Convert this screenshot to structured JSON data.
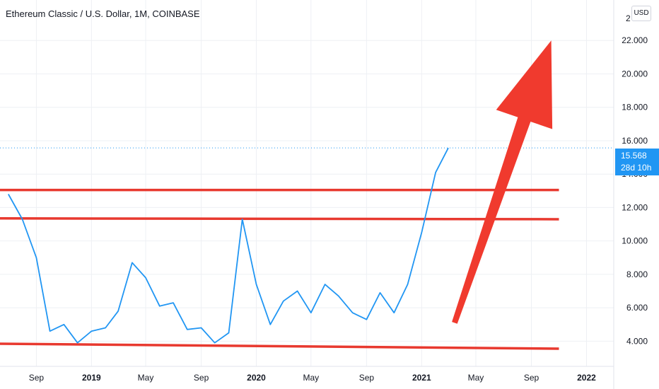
{
  "header": {
    "title": "Ethereum Classic / U.S. Dollar, 1M, COINBASE",
    "currency_button": "USD"
  },
  "price_tag": {
    "price": "15.568",
    "countdown": "28d 10h",
    "color": "#2196f3"
  },
  "colors": {
    "series": "#2196f3",
    "levels": "#e8392f",
    "arrow": "#f03a2e",
    "grid": "#eef0f4",
    "axis_text": "#131722"
  },
  "chart_data": {
    "type": "line",
    "title": "Ethereum Classic / U.S. Dollar, 1M, COINBASE",
    "xlabel": "",
    "ylabel": "",
    "x_axis": {
      "range": [
        "2018-06-25",
        "2022-02-10"
      ],
      "tick_labels": [
        {
          "date": "2018-09-01",
          "label": "Sep"
        },
        {
          "date": "2019-01-01",
          "label": "2019"
        },
        {
          "date": "2019-05-01",
          "label": "May"
        },
        {
          "date": "2019-09-01",
          "label": "Sep"
        },
        {
          "date": "2020-01-01",
          "label": "2020"
        },
        {
          "date": "2020-05-01",
          "label": "May"
        },
        {
          "date": "2020-09-01",
          "label": "Sep"
        },
        {
          "date": "2021-01-01",
          "label": "2021"
        },
        {
          "date": "2021-05-01",
          "label": "May"
        },
        {
          "date": "2021-09-01",
          "label": "Sep"
        },
        {
          "date": "2022-01-01",
          "label": "2022"
        }
      ]
    },
    "y_axis": {
      "range": [
        3.0,
        24.0
      ],
      "ticks": [
        4,
        6,
        8,
        10,
        12,
        14,
        16,
        18,
        20,
        22
      ],
      "tick_labels": [
        "4.000",
        "6.000",
        "8.000",
        "10.000",
        "12.000",
        "14.000",
        "16.000",
        "18.000",
        "20.000",
        "22.000"
      ],
      "top_partial_label": "2"
    },
    "grid": true,
    "series": [
      {
        "color": "#2196f3",
        "points": [
          {
            "x": "2018-07-01",
            "y": 12.8
          },
          {
            "x": "2018-08-01",
            "y": 11.3
          },
          {
            "x": "2018-09-01",
            "y": 9.0
          },
          {
            "x": "2018-10-01",
            "y": 4.6
          },
          {
            "x": "2018-11-01",
            "y": 5.0
          },
          {
            "x": "2018-12-01",
            "y": 3.9
          },
          {
            "x": "2019-01-01",
            "y": 4.6
          },
          {
            "x": "2019-02-01",
            "y": 4.8
          },
          {
            "x": "2019-03-01",
            "y": 5.8
          },
          {
            "x": "2019-04-01",
            "y": 8.7
          },
          {
            "x": "2019-05-01",
            "y": 7.8
          },
          {
            "x": "2019-06-01",
            "y": 6.1
          },
          {
            "x": "2019-07-01",
            "y": 6.3
          },
          {
            "x": "2019-08-01",
            "y": 4.7
          },
          {
            "x": "2019-09-01",
            "y": 4.8
          },
          {
            "x": "2019-10-01",
            "y": 3.9
          },
          {
            "x": "2019-11-01",
            "y": 4.5
          },
          {
            "x": "2019-12-01",
            "y": 11.3
          },
          {
            "x": "2020-01-01",
            "y": 7.4
          },
          {
            "x": "2020-02-01",
            "y": 5.0
          },
          {
            "x": "2020-03-01",
            "y": 6.4
          },
          {
            "x": "2020-04-01",
            "y": 7.0
          },
          {
            "x": "2020-05-01",
            "y": 5.7
          },
          {
            "x": "2020-06-01",
            "y": 7.4
          },
          {
            "x": "2020-07-01",
            "y": 6.7
          },
          {
            "x": "2020-08-01",
            "y": 5.7
          },
          {
            "x": "2020-09-01",
            "y": 5.3
          },
          {
            "x": "2020-10-01",
            "y": 6.9
          },
          {
            "x": "2020-11-01",
            "y": 5.7
          },
          {
            "x": "2020-12-01",
            "y": 7.4
          },
          {
            "x": "2021-01-01",
            "y": 10.5
          },
          {
            "x": "2021-02-01",
            "y": 14.1
          },
          {
            "x": "2021-03-01",
            "y": 15.568
          }
        ]
      }
    ],
    "current_price_line": 15.568,
    "drawings": {
      "horizontal_levels": [
        {
          "from": "2018-06-01",
          "to": "2021-11-01",
          "y_start": 13.05,
          "y_end": 13.05
        },
        {
          "from": "2018-06-01",
          "to": "2021-11-01",
          "y_start": 11.35,
          "y_end": 11.3
        },
        {
          "from": "2018-06-01",
          "to": "2021-11-01",
          "y_start": 3.85,
          "y_end": 3.55
        }
      ],
      "arrow": {
        "from": {
          "x": "2021-03-15",
          "y": 5.1
        },
        "to": {
          "x": "2021-10-15",
          "y": 22.0
        }
      }
    }
  }
}
